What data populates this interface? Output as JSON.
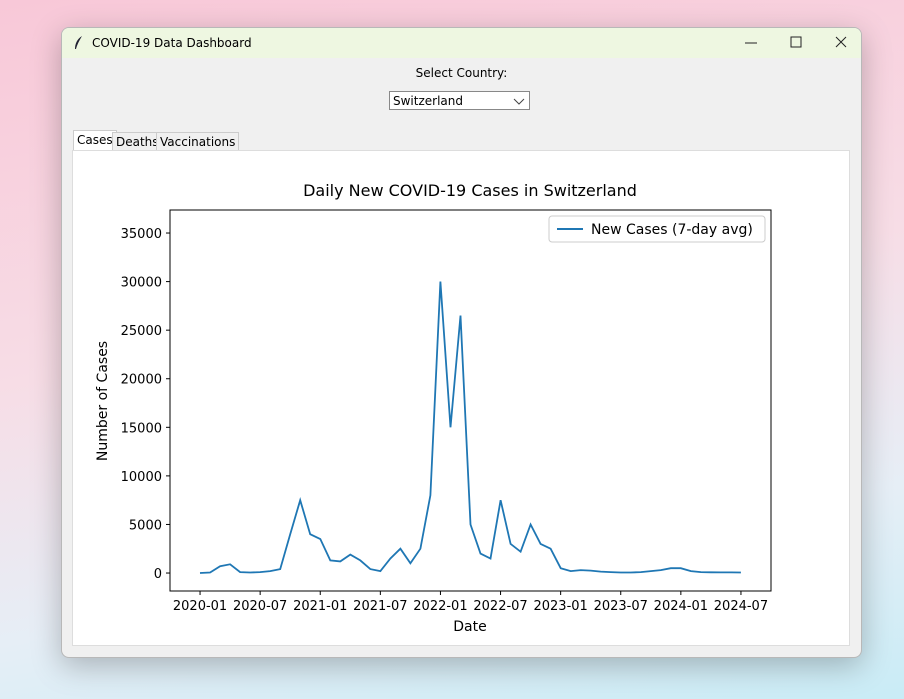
{
  "window": {
    "title": "COVID-19 Data Dashboard"
  },
  "controls": {
    "label": "Select Country:",
    "country": "Switzerland"
  },
  "tabs": [
    "Cases",
    "Deaths",
    "Vaccinations"
  ],
  "chart_data": {
    "type": "line",
    "title": "Daily New COVID-19 Cases in Switzerland",
    "xlabel": "Date",
    "ylabel": "Number of Cases",
    "x": [
      "2020-01",
      "2020-02",
      "2020-03",
      "2020-04",
      "2020-05",
      "2020-06",
      "2020-07",
      "2020-08",
      "2020-09",
      "2020-10",
      "2020-11",
      "2020-12",
      "2021-01",
      "2021-02",
      "2021-03",
      "2021-04",
      "2021-05",
      "2021-06",
      "2021-07",
      "2021-08",
      "2021-09",
      "2021-10",
      "2021-11",
      "2021-12",
      "2022-01",
      "2022-02",
      "2022-03",
      "2022-04",
      "2022-05",
      "2022-06",
      "2022-07",
      "2022-08",
      "2022-09",
      "2022-10",
      "2022-11",
      "2022-12",
      "2023-01",
      "2023-02",
      "2023-03",
      "2023-04",
      "2023-05",
      "2023-06",
      "2023-07",
      "2023-08",
      "2023-09",
      "2023-10",
      "2023-11",
      "2023-12",
      "2024-01",
      "2024-02",
      "2024-03",
      "2024-04",
      "2024-05",
      "2024-06",
      "2024-07"
    ],
    "series": [
      {
        "name": "New Cases (7-day avg)",
        "color": "#1f77b4",
        "values": [
          0,
          50,
          700,
          900,
          100,
          50,
          100,
          200,
          400,
          4000,
          7500,
          4000,
          3500,
          1300,
          1200,
          1900,
          1300,
          400,
          200,
          1500,
          2500,
          1000,
          2500,
          8000,
          30000,
          15000,
          26500,
          5000,
          2000,
          1500,
          7500,
          3000,
          2200,
          5000,
          3000,
          2500,
          500,
          200,
          300,
          250,
          150,
          100,
          50,
          50,
          100,
          200,
          300,
          500,
          500,
          200,
          100,
          80,
          60,
          60,
          50
        ]
      }
    ],
    "xlim": [
      "2019-10",
      "2024-10"
    ],
    "xticks": [
      "2020-01",
      "2020-07",
      "2021-01",
      "2021-07",
      "2022-01",
      "2022-07",
      "2023-01",
      "2023-07",
      "2024-01",
      "2024-07"
    ],
    "ylim": [
      -1850,
      37370
    ],
    "yticks": [
      0,
      5000,
      10000,
      15000,
      20000,
      25000,
      30000,
      35000
    ],
    "legend": "upper right"
  }
}
